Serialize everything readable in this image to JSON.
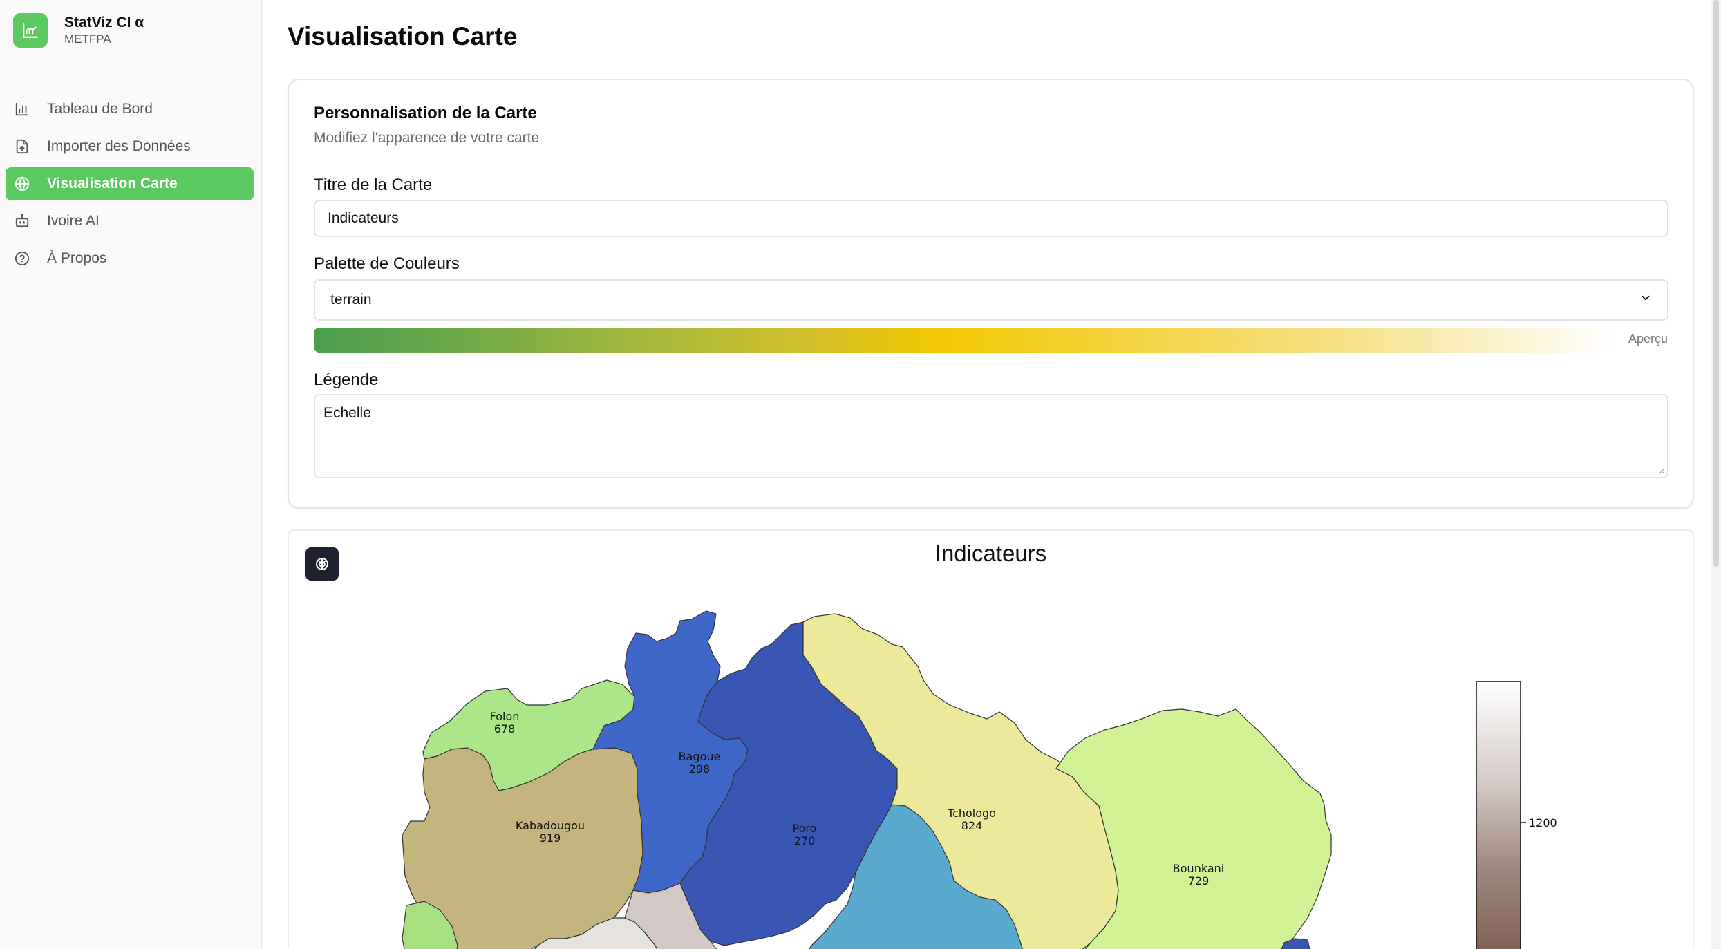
{
  "app": {
    "name": "StatViz CI α",
    "org": "METFPA"
  },
  "sidebar": {
    "items": [
      {
        "label": "Tableau de Bord",
        "icon": "bar-chart-icon"
      },
      {
        "label": "Importer des Données",
        "icon": "file-upload-icon"
      },
      {
        "label": "Visualisation Carte",
        "icon": "globe-icon",
        "active": true
      },
      {
        "label": "Ivoire AI",
        "icon": "bot-icon"
      },
      {
        "label": "À Propos",
        "icon": "help-circle-icon"
      }
    ]
  },
  "page": {
    "title": "Visualisation Carte"
  },
  "customize": {
    "title": "Personnalisation de la Carte",
    "subtitle": "Modifiez l'apparence de votre carte",
    "map_title_label": "Titre de la Carte",
    "map_title_value": "Indicateurs",
    "palette_label": "Palette de Couleurs",
    "palette_value": "terrain",
    "preview_label": "Aperçu",
    "legend_label": "Légende",
    "legend_value": "Echelle"
  },
  "map": {
    "title": "Indicateurs",
    "regions": [
      {
        "name": "Folon",
        "value": "678",
        "color": "#ade688"
      },
      {
        "name": "Bagoue",
        "value": "298",
        "color": "#3f67c9"
      },
      {
        "name": "Kabadougou",
        "value": "919",
        "color": "#c4b57e"
      },
      {
        "name": "Poro",
        "value": "270",
        "color": "#3a56b4"
      },
      {
        "name": "Tchologo",
        "value": "824",
        "color": "#ede99b"
      },
      {
        "name": "Bounkani",
        "value": "729",
        "color": "#d2f296"
      }
    ],
    "colorbar": {
      "tick": "1200"
    }
  }
}
